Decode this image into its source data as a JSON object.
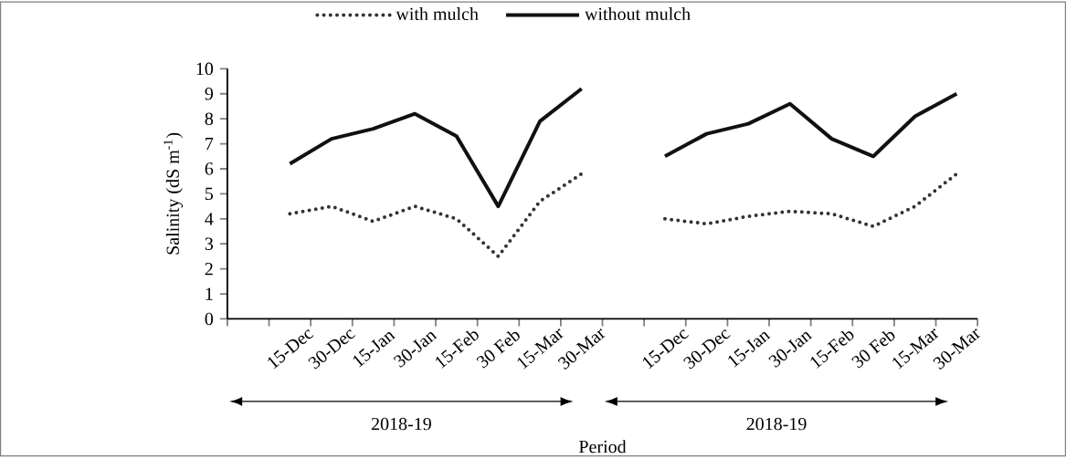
{
  "chart_data": {
    "type": "line",
    "xlabel": "Period",
    "ylabel": "Salinity (dS m$^{-1}$)",
    "categories": [
      null,
      "15-Dec",
      "30-Dec",
      "15-Jan",
      "30-Jan",
      "15-Feb",
      "30 Feb",
      "15-Mar",
      "30-Mar",
      null,
      "15-Dec",
      "30-Dec",
      "15-Jan",
      "30-Jan",
      "15-Feb",
      "30 Feb",
      "15-Mar",
      "30-Mar"
    ],
    "series": [
      {
        "name": "with mulch",
        "color": "#333333",
        "line_style": "dotted",
        "values": [
          null,
          4.2,
          4.5,
          3.9,
          4.5,
          4.0,
          2.5,
          4.7,
          5.8,
          null,
          4.0,
          3.8,
          4.1,
          4.3,
          4.2,
          3.7,
          4.5,
          5.8
        ]
      },
      {
        "name": "without mulch",
        "color": "#111111",
        "line_style": "solid",
        "values": [
          null,
          6.2,
          7.2,
          7.6,
          8.2,
          7.3,
          4.5,
          7.9,
          9.2,
          null,
          6.5,
          7.4,
          7.8,
          8.6,
          7.2,
          6.5,
          8.1,
          9.0
        ]
      }
    ],
    "ylim": [
      0,
      10
    ],
    "yticks": [
      0,
      1,
      2,
      3,
      4,
      5,
      6,
      7,
      8,
      9,
      10
    ],
    "legend": "top",
    "annotations": [
      "2018-19",
      "2018-19"
    ]
  }
}
